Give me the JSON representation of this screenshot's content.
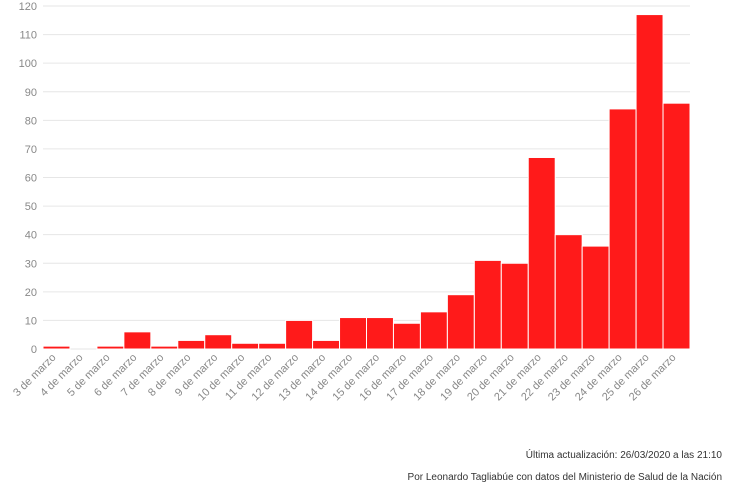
{
  "chart_data": {
    "type": "bar",
    "title": "",
    "xlabel": "",
    "ylabel": "",
    "categories": [
      "3 de marzo",
      "4 de marzo",
      "5 de marzo",
      "6 de marzo",
      "7 de marzo",
      "8 de marzo",
      "9 de marzo",
      "10 de marzo",
      "11 de marzo",
      "12 de marzo",
      "13 de marzo",
      "14 de marzo",
      "15 de marzo",
      "16 de marzo",
      "17 de marzo",
      "18 de marzo",
      "19 de marzo",
      "20 de marzo",
      "21 de marzo",
      "22 de marzo",
      "23 de marzo",
      "24 de marzo",
      "25 de marzo",
      "26 de marzo"
    ],
    "values": [
      1,
      0,
      1,
      6,
      1,
      3,
      5,
      2,
      2,
      10,
      3,
      11,
      11,
      9,
      13,
      19,
      31,
      30,
      67,
      40,
      36,
      84,
      117,
      86
    ],
    "ylim": [
      0,
      120
    ],
    "yticks": [
      0,
      10,
      20,
      30,
      40,
      50,
      60,
      70,
      80,
      90,
      100,
      110,
      120
    ],
    "grid": true,
    "bar_color": "#ff1a1a"
  },
  "footer": {
    "updated": "Última actualización: 26/03/2020 a las 21:10",
    "credit": "Por Leonardo Tagliabúe con datos del Ministerio de Salud de la Nación"
  }
}
